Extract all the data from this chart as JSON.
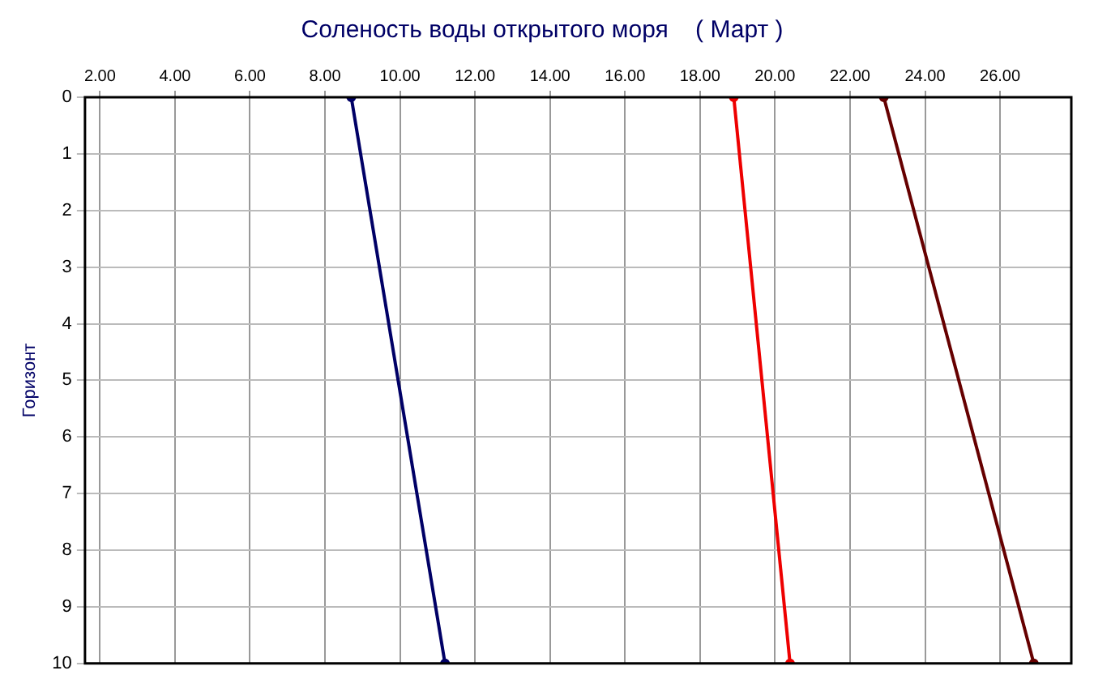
{
  "chart_data": {
    "type": "line",
    "title": "Соленость воды открытого моря    ( Март )",
    "ylabel": "Горизонт",
    "series": [
      {
        "color": "#000066",
        "x": [
          8.7,
          11.2
        ],
        "values": [
          0,
          10
        ]
      },
      {
        "color": "#ee0000",
        "x": [
          18.9,
          20.4
        ],
        "values": [
          0,
          10
        ]
      },
      {
        "color": "#660000",
        "x": [
          22.9,
          26.9
        ],
        "values": [
          0,
          10
        ]
      }
    ],
    "xlim": [
      1.6,
      27.9
    ],
    "xticks": [
      {
        "value": 2,
        "label": "2.00"
      },
      {
        "value": 4,
        "label": "4.00"
      },
      {
        "value": 6,
        "label": "6.00"
      },
      {
        "value": 8,
        "label": "8.00"
      },
      {
        "value": 10,
        "label": "10.00"
      },
      {
        "value": 12,
        "label": "12.00"
      },
      {
        "value": 14,
        "label": "14.00"
      },
      {
        "value": 16,
        "label": "16.00"
      },
      {
        "value": 18,
        "label": "18.00"
      },
      {
        "value": 20,
        "label": "20.00"
      },
      {
        "value": 22,
        "label": "22.00"
      },
      {
        "value": 24,
        "label": "24.00"
      },
      {
        "value": 26,
        "label": "26.00"
      }
    ],
    "ylim": [
      10,
      0
    ],
    "yticks": [
      0,
      1,
      2,
      3,
      4,
      5,
      6,
      7,
      8,
      9,
      10
    ],
    "grid": true,
    "marker": "circle",
    "line_style": "solid",
    "legend": false
  }
}
